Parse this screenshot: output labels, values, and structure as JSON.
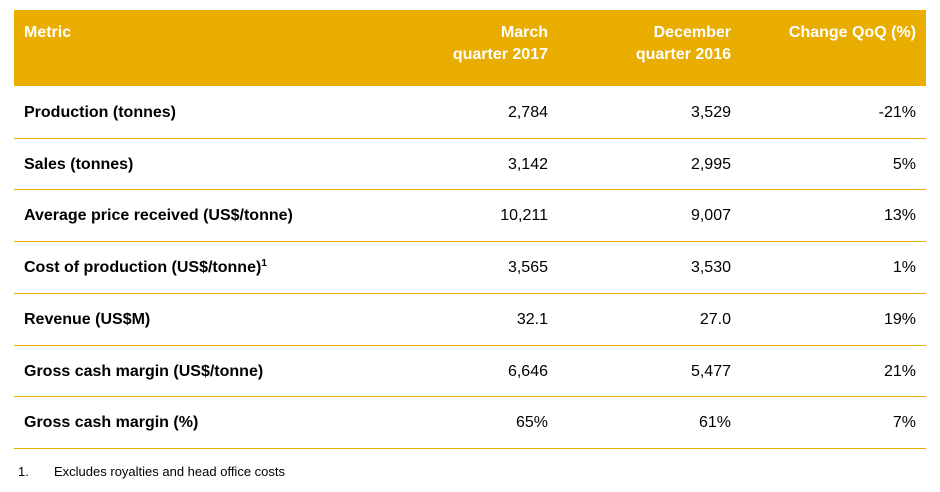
{
  "table": {
    "header": [
      [
        "Metric"
      ],
      [
        "March",
        "quarter 2017"
      ],
      [
        "December",
        "quarter 2016"
      ],
      [
        "Change QoQ (%)"
      ]
    ],
    "rows": [
      {
        "metric": "Production (tonnes)",
        "values": [
          "2,784",
          "3,529",
          "-21%"
        ]
      },
      {
        "metric": "Sales (tonnes)",
        "values": [
          "3,142",
          "2,995",
          "5%"
        ]
      },
      {
        "metric": "Average price received (US$/tonne)",
        "values": [
          "10,211",
          "9,007",
          "13%"
        ]
      },
      {
        "metric": "Cost of production (US$/tonne)",
        "note": "1",
        "values": [
          "3,565",
          "3,530",
          "1%"
        ]
      },
      {
        "metric": "Revenue (US$M)",
        "values": [
          "32.1",
          "27.0",
          "19%"
        ]
      },
      {
        "metric": "Gross cash margin (US$/tonne)",
        "values": [
          "6,646",
          "5,477",
          "21%"
        ]
      },
      {
        "metric": "Gross cash margin (%)",
        "values": [
          "65%",
          "61%",
          "7%"
        ]
      }
    ]
  },
  "footnote": {
    "number": "1.",
    "text": "Excludes royalties and head office costs"
  }
}
